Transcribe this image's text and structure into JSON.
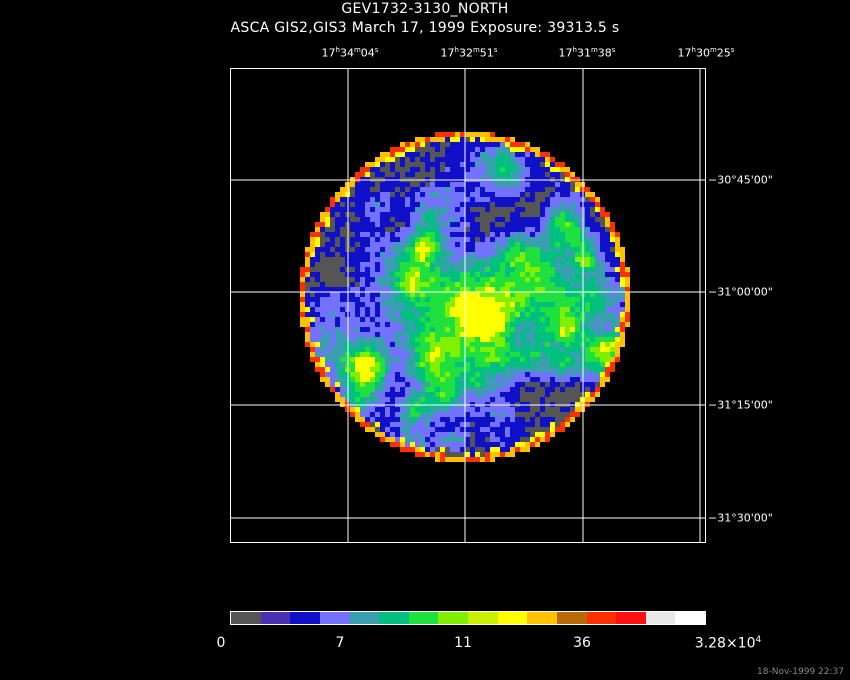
{
  "title": "GEV1732-3130_NORTH",
  "subtitle": "ASCA GIS2,GIS3 March 17, 1999 Exposure: 39313.5 s",
  "ra_labels": [
    {
      "h": "17",
      "m": "34",
      "s": "04"
    },
    {
      "h": "17",
      "m": "32",
      "s": "51"
    },
    {
      "h": "17",
      "m": "31",
      "s": "38"
    },
    {
      "h": "17",
      "m": "30",
      "s": "25"
    }
  ],
  "dec_labels": [
    "−30°45'00\"",
    "−31°00'00\"",
    "−31°15'00\"",
    "−31°30'00\""
  ],
  "colorbar": {
    "colors": [
      "#555555",
      "#4a2fb0",
      "#1010c8",
      "#7272ff",
      "#3aa0b0",
      "#00c080",
      "#20e040",
      "#80f000",
      "#c8f000",
      "#ffff00",
      "#ffc000",
      "#b86b08",
      "#ff3000",
      "#ff1010",
      "#e8e8e8",
      "#ffffff"
    ],
    "labels": [
      "0",
      "7",
      "11",
      "36"
    ],
    "max_label": {
      "base": "3.28×10",
      "exp": "4"
    }
  },
  "footer": "18-Nov-1999 22:37"
}
